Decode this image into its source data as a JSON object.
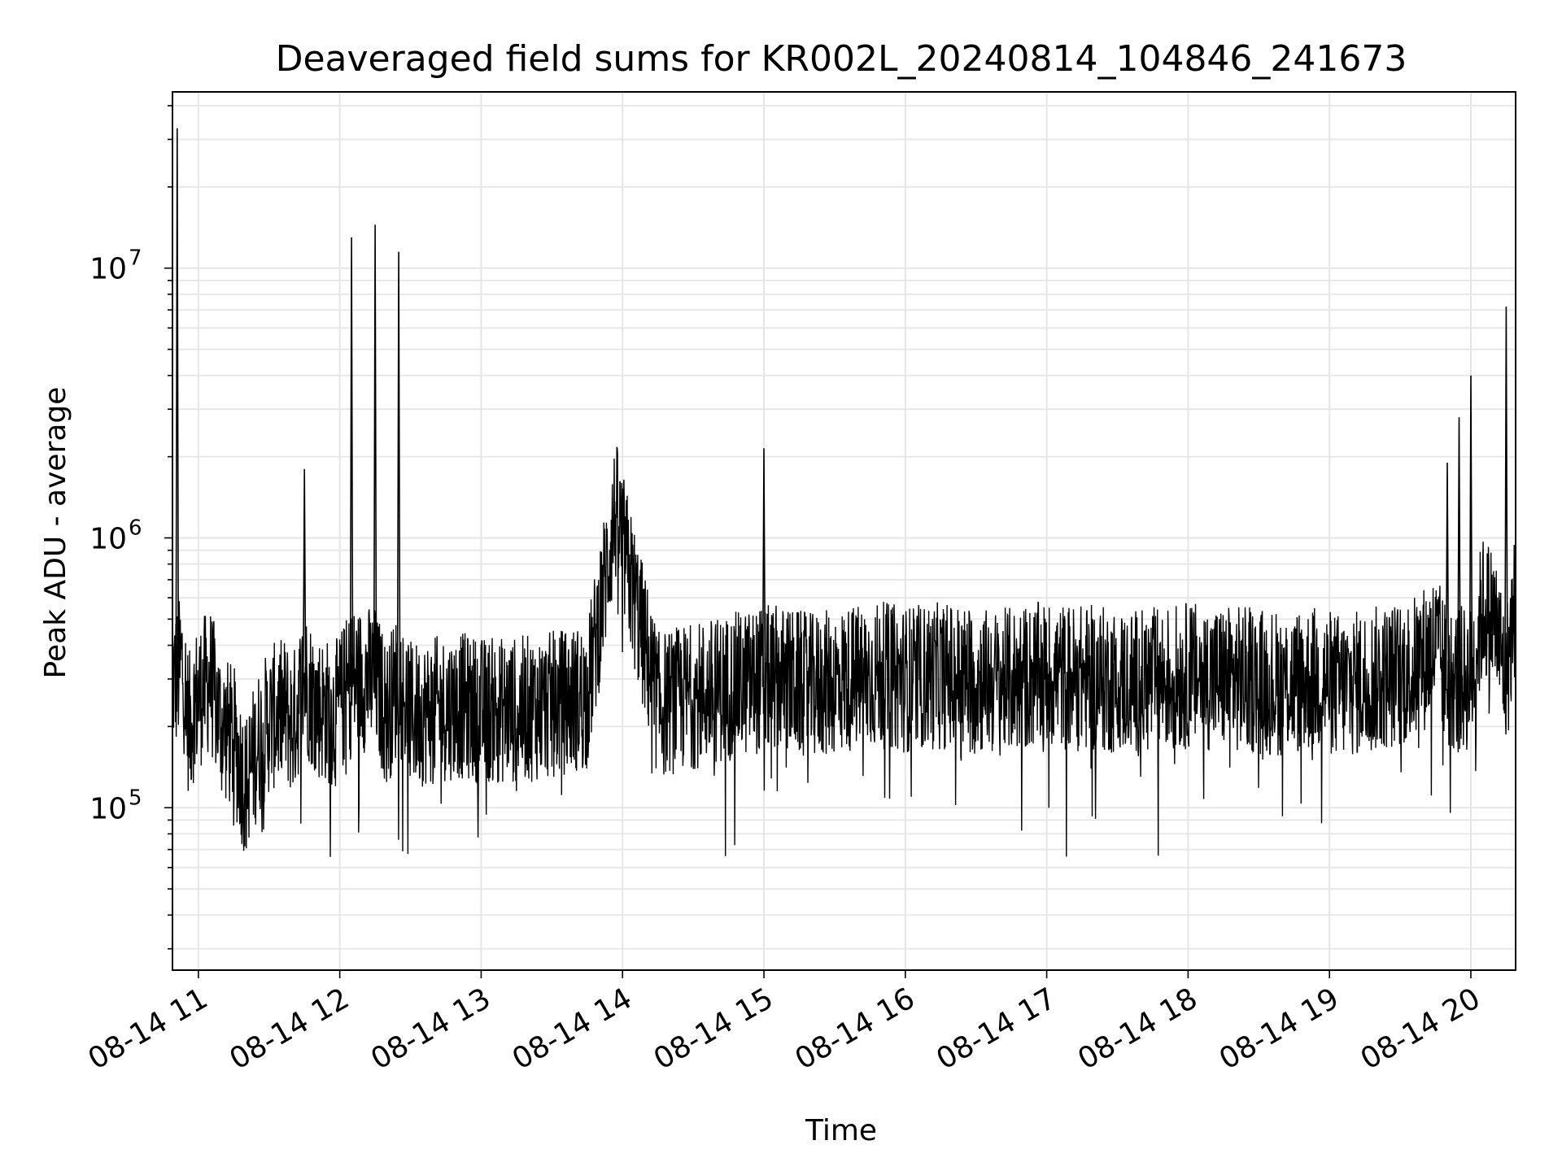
{
  "chart_data": {
    "type": "line",
    "title": "Deaveraged field sums for KR002L_20240814_104846_241673",
    "xlabel": "Time",
    "ylabel": "Peak ADU - average",
    "yscale": "log",
    "ylim": [
      25000,
      45000000
    ],
    "xlim": [
      "2024-08-14 10:49",
      "2024-08-14 20:19"
    ],
    "grid": true,
    "line_color": "#000000",
    "grid_color": "#e6e6e6",
    "x_ticks": [
      "08-14 11",
      "08-14 12",
      "08-14 13",
      "08-14 14",
      "08-14 15",
      "08-14 16",
      "08-14 17",
      "08-14 18",
      "08-14 19",
      "08-14 20"
    ],
    "x_tick_times": [
      "2024-08-14 11:00",
      "2024-08-14 12:00",
      "2024-08-14 13:00",
      "2024-08-14 14:00",
      "2024-08-14 15:00",
      "2024-08-14 16:00",
      "2024-08-14 17:00",
      "2024-08-14 18:00",
      "2024-08-14 19:00",
      "2024-08-14 20:00"
    ],
    "y_ticks": [
      {
        "base": "10",
        "exp": "5",
        "value": 100000
      },
      {
        "base": "10",
        "exp": "6",
        "value": 1000000
      },
      {
        "base": "10",
        "exp": "7",
        "value": 10000000
      }
    ],
    "series": [
      {
        "x": [
          "2024-08-14 10:49",
          "2024-08-14 10:51",
          "2024-08-14 10:53",
          "2024-08-14 10:56",
          "2024-08-14 10:59",
          "2024-08-14 11:05",
          "2024-08-14 11:10",
          "2024-08-14 11:15",
          "2024-08-14 11:20",
          "2024-08-14 11:25",
          "2024-08-14 11:30",
          "2024-08-14 11:33",
          "2024-08-14 11:37",
          "2024-08-14 11:40",
          "2024-08-14 11:45",
          "2024-08-14 11:50",
          "2024-08-14 11:58",
          "2024-08-14 12:05",
          "2024-08-14 12:15",
          "2024-08-14 12:20",
          "2024-08-14 12:25",
          "2024-08-14 12:30",
          "2024-08-14 12:40",
          "2024-08-14 12:50",
          "2024-08-14 13:00",
          "2024-08-14 13:15",
          "2024-08-14 13:30",
          "2024-08-14 13:45",
          "2024-08-14 13:57",
          "2024-08-14 14:15",
          "2024-08-14 14:30",
          "2024-08-14 14:45",
          "2024-08-14 15:00",
          "2024-08-14 15:07",
          "2024-08-14 15:20",
          "2024-08-14 15:35",
          "2024-08-14 15:50",
          "2024-08-14 16:00",
          "2024-08-14 16:20",
          "2024-08-14 16:40",
          "2024-08-14 16:47",
          "2024-08-14 17:00",
          "2024-08-14 17:20",
          "2024-08-14 17:40",
          "2024-08-14 18:00",
          "2024-08-14 18:20",
          "2024-08-14 18:40",
          "2024-08-14 18:55",
          "2024-08-14 19:05",
          "2024-08-14 19:20",
          "2024-08-14 19:35",
          "2024-08-14 19:45",
          "2024-08-14 19:50",
          "2024-08-14 19:55",
          "2024-08-14 20:00",
          "2024-08-14 20:05",
          "2024-08-14 20:10",
          "2024-08-14 20:15",
          "2024-08-14 20:19"
        ],
        "y": [
          300000,
          33000000,
          350000,
          200000,
          250000,
          300000,
          200000,
          180000,
          120000,
          170000,
          210000,
          220000,
          230000,
          200000,
          1800000,
          240000,
          220000,
          13000000,
          14500000,
          220000,
          11500000,
          220000,
          230000,
          240000,
          230000,
          230000,
          240000,
          260000,
          1250000,
          240000,
          260000,
          280000,
          2150000,
          300000,
          280000,
          300000,
          310000,
          300000,
          310000,
          290000,
          300000,
          310000,
          300000,
          290000,
          310000,
          300000,
          290000,
          300000,
          280000,
          300000,
          320000,
          400000,
          1900000,
          2800000,
          4000000,
          550000,
          500000,
          7200000,
          600000
        ]
      }
    ]
  }
}
